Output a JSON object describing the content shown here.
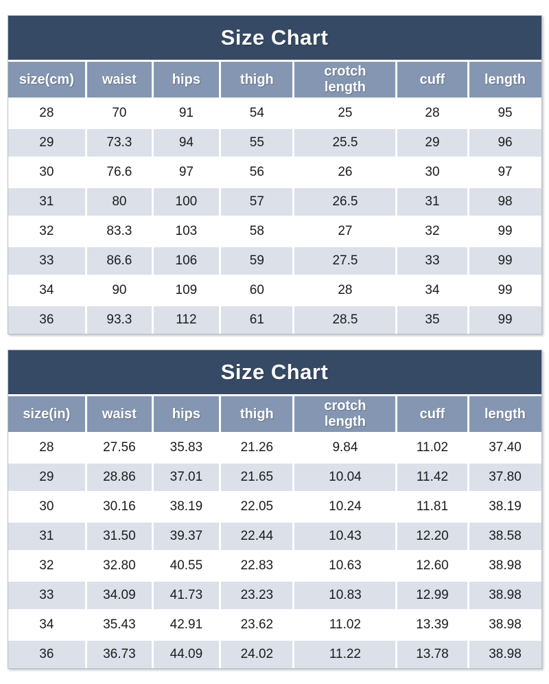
{
  "colors": {
    "title_bg": "#364a65",
    "title_text": "#ffffff",
    "header_bg": "#8496b1",
    "header_text": "#ffffff",
    "row_bg": "#ffffff",
    "row_alt_bg": "#dbe0e9",
    "cell_text": "#1b1b1b",
    "grid_line": "#ffffff",
    "outer_border": "#b9bdc6"
  },
  "chart_data": [
    {
      "type": "table",
      "title": "Size Chart",
      "unit": "cm",
      "columns": [
        "size(cm)",
        "waist",
        "hips",
        "thigh",
        "crotch length",
        "cuff",
        "length"
      ],
      "rows": [
        [
          "28",
          "70",
          "91",
          "54",
          "25",
          "28",
          "95"
        ],
        [
          "29",
          "73.3",
          "94",
          "55",
          "25.5",
          "29",
          "96"
        ],
        [
          "30",
          "76.6",
          "97",
          "56",
          "26",
          "30",
          "97"
        ],
        [
          "31",
          "80",
          "100",
          "57",
          "26.5",
          "31",
          "98"
        ],
        [
          "32",
          "83.3",
          "103",
          "58",
          "27",
          "32",
          "99"
        ],
        [
          "33",
          "86.6",
          "106",
          "59",
          "27.5",
          "33",
          "99"
        ],
        [
          "34",
          "90",
          "109",
          "60",
          "28",
          "34",
          "99"
        ],
        [
          "36",
          "93.3",
          "112",
          "61",
          "28.5",
          "35",
          "99"
        ]
      ]
    },
    {
      "type": "table",
      "title": "Size Chart",
      "unit": "in",
      "columns": [
        "size(in)",
        "waist",
        "hips",
        "thigh",
        "crotch length",
        "cuff",
        "length"
      ],
      "rows": [
        [
          "28",
          "27.56",
          "35.83",
          "21.26",
          "9.84",
          "11.02",
          "37.40"
        ],
        [
          "29",
          "28.86",
          "37.01",
          "21.65",
          "10.04",
          "11.42",
          "37.80"
        ],
        [
          "30",
          "30.16",
          "38.19",
          "22.05",
          "10.24",
          "11.81",
          "38.19"
        ],
        [
          "31",
          "31.50",
          "39.37",
          "22.44",
          "10.43",
          "12.20",
          "38.58"
        ],
        [
          "32",
          "32.80",
          "40.55",
          "22.83",
          "10.63",
          "12.60",
          "38.98"
        ],
        [
          "33",
          "34.09",
          "41.73",
          "23.23",
          "10.83",
          "12.99",
          "38.98"
        ],
        [
          "34",
          "35.43",
          "42.91",
          "23.62",
          "11.02",
          "13.39",
          "38.98"
        ],
        [
          "36",
          "36.73",
          "44.09",
          "24.02",
          "11.22",
          "13.78",
          "38.98"
        ]
      ]
    }
  ]
}
